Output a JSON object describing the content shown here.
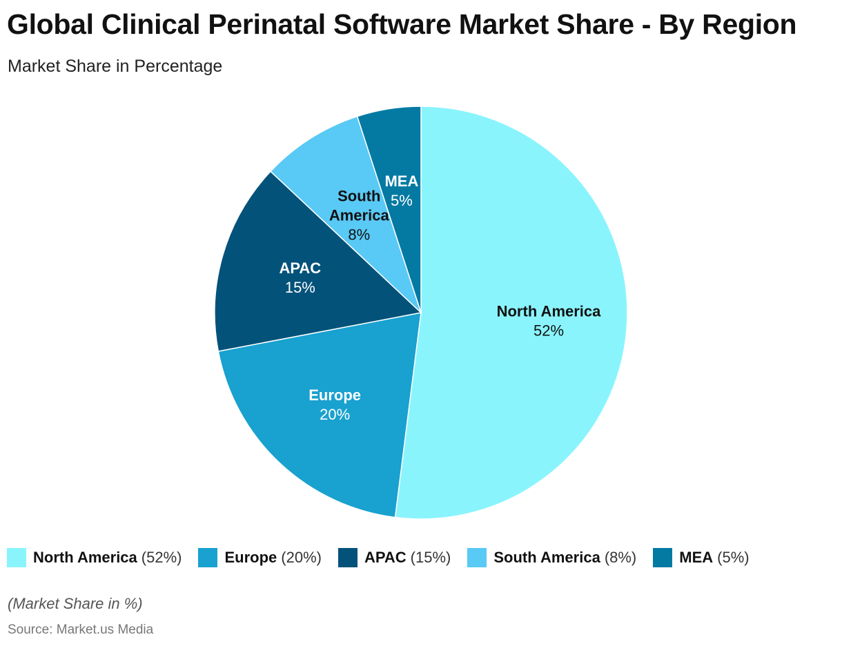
{
  "chart_data": {
    "type": "pie",
    "title": "Global Clinical Perinatal Software Market Share - By Region",
    "subtitle": "Market Share in Percentage",
    "unit": "%",
    "categories": [
      "North America",
      "Europe",
      "APAC",
      "South America",
      "MEA"
    ],
    "values": [
      52,
      20,
      15,
      8,
      5
    ],
    "value_labels": [
      "52%",
      "20%",
      "15%",
      "8%",
      "5%"
    ],
    "legend_values": [
      "(52%)",
      "(20%)",
      "(15%)",
      "(8%)",
      "(5%)"
    ],
    "colors": [
      "#8af4fd",
      "#19a1cf",
      "#03527a",
      "#59c9f5",
      "#047aa3"
    ],
    "label_colors": [
      "#111111",
      "#ffffff",
      "#ffffff",
      "#111111",
      "#ffffff"
    ],
    "legend_position": "bottom",
    "note": "(Market Share in %)",
    "source": "Source: Market.us Media"
  }
}
